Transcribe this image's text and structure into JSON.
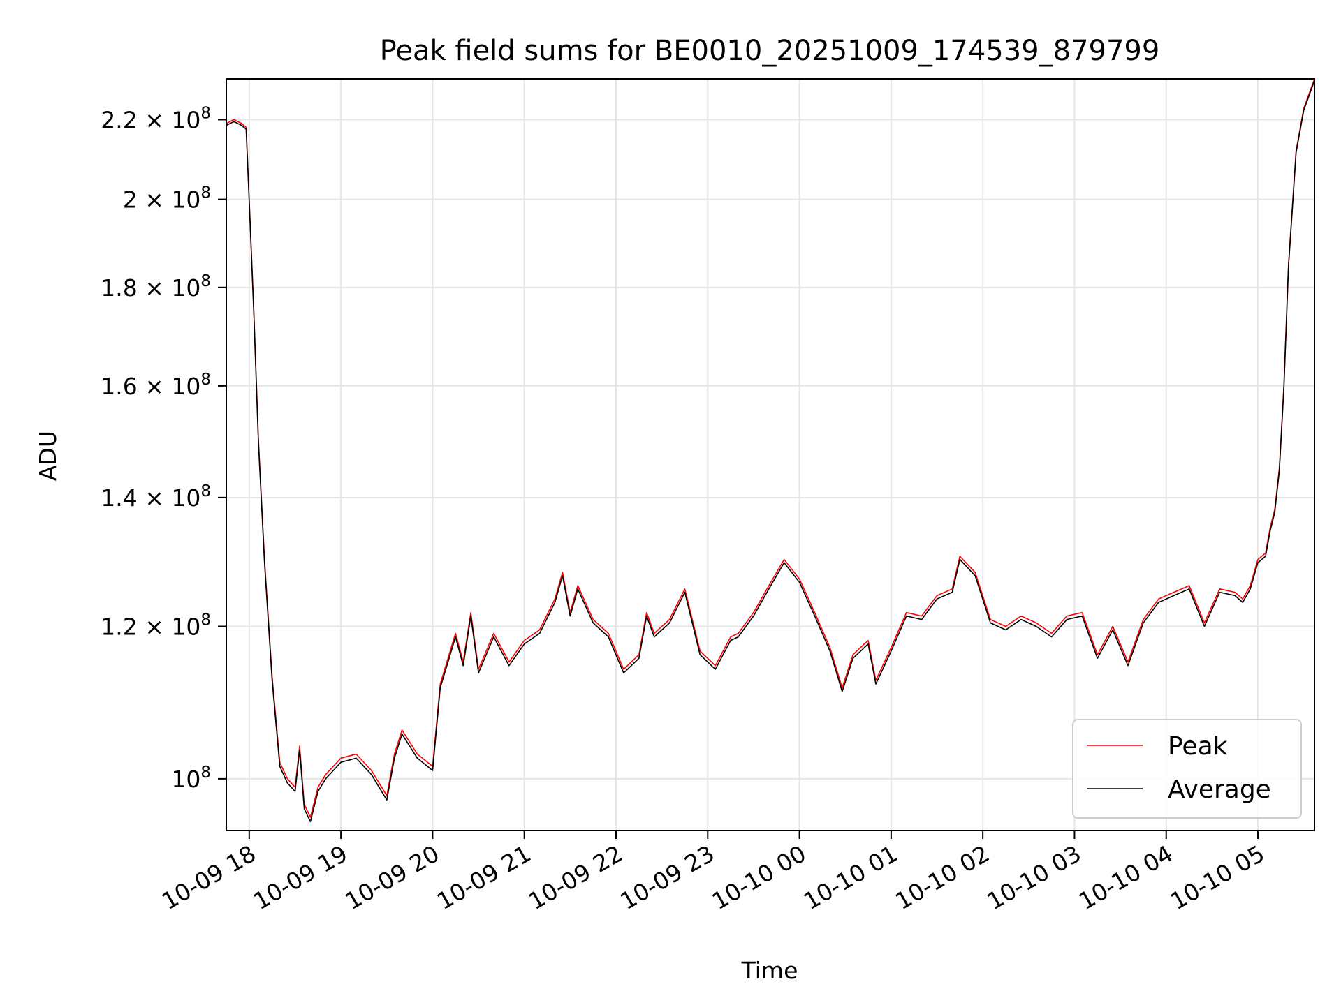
{
  "chart_data": {
    "type": "line",
    "title": "Peak field sums for BE0010_20251009_174539_879799",
    "xlabel": "Time",
    "ylabel": "ADU",
    "y_scale": "log",
    "ylim": [
      94000000,
      231000000
    ],
    "xlim": [
      "2025-10-09 17:45",
      "2025-10-10 05:37"
    ],
    "grid": true,
    "legend_position": "lower right",
    "x_ticks": [
      {
        "value": "2025-10-09 18:00",
        "label": "10-09 18"
      },
      {
        "value": "2025-10-09 19:00",
        "label": "10-09 19"
      },
      {
        "value": "2025-10-09 20:00",
        "label": "10-09 20"
      },
      {
        "value": "2025-10-09 21:00",
        "label": "10-09 21"
      },
      {
        "value": "2025-10-09 22:00",
        "label": "10-09 22"
      },
      {
        "value": "2025-10-09 23:00",
        "label": "10-09 23"
      },
      {
        "value": "2025-10-10 00:00",
        "label": "10-10 00"
      },
      {
        "value": "2025-10-10 01:00",
        "label": "10-10 01"
      },
      {
        "value": "2025-10-10 02:00",
        "label": "10-10 02"
      },
      {
        "value": "2025-10-10 03:00",
        "label": "10-10 03"
      },
      {
        "value": "2025-10-10 04:00",
        "label": "10-10 04"
      },
      {
        "value": "2025-10-10 05:00",
        "label": "10-10 05"
      }
    ],
    "y_ticks": [
      {
        "value": 100000000,
        "mantissa": "",
        "exponent": "8"
      },
      {
        "value": 120000000,
        "mantissa": "1.2",
        "exponent": "8"
      },
      {
        "value": 140000000,
        "mantissa": "1.4",
        "exponent": "8"
      },
      {
        "value": 160000000,
        "mantissa": "1.6",
        "exponent": "8"
      },
      {
        "value": 180000000,
        "mantissa": "1.8",
        "exponent": "8"
      },
      {
        "value": 200000000,
        "mantissa": "2",
        "exponent": "8"
      },
      {
        "value": 220000000,
        "mantissa": "2.2",
        "exponent": "8"
      }
    ],
    "tick_base": "10",
    "tick_times": "×",
    "x": [
      "2025-10-09 17:45",
      "2025-10-09 17:50",
      "2025-10-09 17:55",
      "2025-10-09 17:58",
      "2025-10-09 18:00",
      "2025-10-09 18:03",
      "2025-10-09 18:06",
      "2025-10-09 18:10",
      "2025-10-09 18:15",
      "2025-10-09 18:20",
      "2025-10-09 18:25",
      "2025-10-09 18:30",
      "2025-10-09 18:33",
      "2025-10-09 18:36",
      "2025-10-09 18:40",
      "2025-10-09 18:45",
      "2025-10-09 18:50",
      "2025-10-09 18:55",
      "2025-10-09 19:00",
      "2025-10-09 19:10",
      "2025-10-09 19:20",
      "2025-10-09 19:30",
      "2025-10-09 19:35",
      "2025-10-09 19:40",
      "2025-10-09 19:50",
      "2025-10-09 20:00",
      "2025-10-09 20:05",
      "2025-10-09 20:15",
      "2025-10-09 20:20",
      "2025-10-09 20:25",
      "2025-10-09 20:30",
      "2025-10-09 20:40",
      "2025-10-09 20:50",
      "2025-10-09 21:00",
      "2025-10-09 21:10",
      "2025-10-09 21:20",
      "2025-10-09 21:25",
      "2025-10-09 21:30",
      "2025-10-09 21:35",
      "2025-10-09 21:45",
      "2025-10-09 21:55",
      "2025-10-09 22:05",
      "2025-10-09 22:15",
      "2025-10-09 22:20",
      "2025-10-09 22:25",
      "2025-10-09 22:35",
      "2025-10-09 22:45",
      "2025-10-09 22:55",
      "2025-10-09 23:05",
      "2025-10-09 23:15",
      "2025-10-09 23:20",
      "2025-10-09 23:30",
      "2025-10-09 23:40",
      "2025-10-09 23:50",
      "2025-10-10 00:00",
      "2025-10-10 00:10",
      "2025-10-10 00:20",
      "2025-10-10 00:28",
      "2025-10-10 00:35",
      "2025-10-10 00:45",
      "2025-10-10 00:50",
      "2025-10-10 01:00",
      "2025-10-10 01:10",
      "2025-10-10 01:20",
      "2025-10-10 01:30",
      "2025-10-10 01:40",
      "2025-10-10 01:45",
      "2025-10-10 01:55",
      "2025-10-10 02:05",
      "2025-10-10 02:15",
      "2025-10-10 02:25",
      "2025-10-10 02:35",
      "2025-10-10 02:45",
      "2025-10-10 02:55",
      "2025-10-10 03:05",
      "2025-10-10 03:15",
      "2025-10-10 03:25",
      "2025-10-10 03:35",
      "2025-10-10 03:45",
      "2025-10-10 03:55",
      "2025-10-10 04:05",
      "2025-10-10 04:15",
      "2025-10-10 04:25",
      "2025-10-10 04:35",
      "2025-10-10 04:45",
      "2025-10-10 04:50",
      "2025-10-10 04:55",
      "2025-10-10 05:00",
      "2025-10-10 05:05",
      "2025-10-10 05:08",
      "2025-10-10 05:11",
      "2025-10-10 05:14",
      "2025-10-10 05:17",
      "2025-10-10 05:20",
      "2025-10-10 05:25",
      "2025-10-10 05:30",
      "2025-10-10 05:37"
    ],
    "series": [
      {
        "name": "Peak",
        "color": "#ff0000",
        "values": [
          219000000,
          220000000,
          219000000,
          218000000,
          200000000,
          175000000,
          150000000,
          130000000,
          113000000,
          102000000,
          100000000,
          99000000,
          104000000,
          97000000,
          95500000,
          99000000,
          100500000,
          101500000,
          102500000,
          103000000,
          101000000,
          98000000,
          103000000,
          106000000,
          103000000,
          101500000,
          112000000,
          119000000,
          115000000,
          122000000,
          114000000,
          119000000,
          115000000,
          118000000,
          119500000,
          124000000,
          128000000,
          122000000,
          126000000,
          121000000,
          119000000,
          114000000,
          116000000,
          122000000,
          119000000,
          121000000,
          125500000,
          116500000,
          114500000,
          118500000,
          119000000,
          122000000,
          126000000,
          130000000,
          127000000,
          122000000,
          117000000,
          111500000,
          116000000,
          118000000,
          112500000,
          117000000,
          122000000,
          121500000,
          124500000,
          125500000,
          130500000,
          128000000,
          121000000,
          120000000,
          121500000,
          120500000,
          119000000,
          121500000,
          122000000,
          116000000,
          120000000,
          115000000,
          121000000,
          124000000,
          125000000,
          126000000,
          120500000,
          125500000,
          125000000,
          124000000,
          126000000,
          130000000,
          131000000,
          135000000,
          138000000,
          145000000,
          160000000,
          185000000,
          212000000,
          223000000,
          231000000
        ]
      },
      {
        "name": "Average",
        "color": "#000000",
        "values": [
          218500000,
          219500000,
          218500000,
          217500000,
          199500000,
          174500000,
          149500000,
          129500000,
          112500000,
          101500000,
          99500000,
          98500000,
          103500000,
          96500000,
          95000000,
          98500000,
          100000000,
          101000000,
          102000000,
          102500000,
          100500000,
          97500000,
          102500000,
          105500000,
          102500000,
          101000000,
          111500000,
          118500000,
          114500000,
          121500000,
          113500000,
          118500000,
          114500000,
          117500000,
          119000000,
          123500000,
          127500000,
          121500000,
          125500000,
          120500000,
          118500000,
          113500000,
          115500000,
          121500000,
          118500000,
          120500000,
          125000000,
          116000000,
          114000000,
          118000000,
          118500000,
          121500000,
          125500000,
          129500000,
          126500000,
          121500000,
          116500000,
          111000000,
          115500000,
          117500000,
          112000000,
          116500000,
          121500000,
          121000000,
          124000000,
          125000000,
          130000000,
          127500000,
          120500000,
          119500000,
          121000000,
          120000000,
          118500000,
          121000000,
          121500000,
          115500000,
          119500000,
          114500000,
          120500000,
          123500000,
          124500000,
          125500000,
          120000000,
          125000000,
          124500000,
          123500000,
          125500000,
          129500000,
          130500000,
          134500000,
          137500000,
          144500000,
          159500000,
          184500000,
          211500000,
          222500000,
          230500000
        ]
      }
    ]
  }
}
